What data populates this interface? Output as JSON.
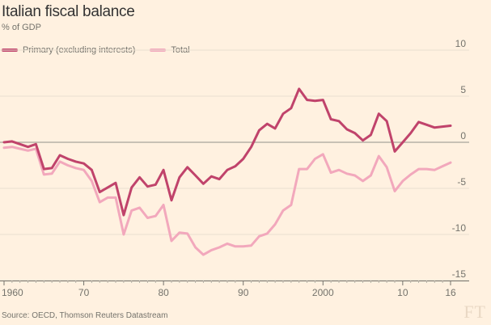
{
  "chart_data": {
    "type": "line",
    "title": "Italian fiscal balance",
    "subtitle": "% of GDP",
    "ylim": [
      -15,
      10
    ],
    "xlim": [
      1960,
      2016
    ],
    "y_ticks": [
      10,
      5,
      0,
      -5,
      -10,
      -15
    ],
    "x_ticks": [
      1960,
      1970,
      1980,
      1990,
      2000,
      2010,
      2016
    ],
    "x_tick_labels": [
      "1960",
      "70",
      "80",
      "90",
      "2000",
      "10",
      "16"
    ],
    "grid": true,
    "legend_position": "top-left",
    "series": [
      {
        "name": "Primary (excluding interests)",
        "color": "#c0436b",
        "points": [
          [
            1960,
            0.0
          ],
          [
            1961,
            0.1
          ],
          [
            1962,
            -0.2
          ],
          [
            1963,
            -0.5
          ],
          [
            1964,
            -0.2
          ],
          [
            1965,
            -2.9
          ],
          [
            1966,
            -2.8
          ],
          [
            1967,
            -1.4
          ],
          [
            1968,
            -1.8
          ],
          [
            1969,
            -2.1
          ],
          [
            1970,
            -2.3
          ],
          [
            1971,
            -3.0
          ],
          [
            1972,
            -5.4
          ],
          [
            1973,
            -4.9
          ],
          [
            1974,
            -4.4
          ],
          [
            1975,
            -7.9
          ],
          [
            1976,
            -4.9
          ],
          [
            1977,
            -3.8
          ],
          [
            1978,
            -4.8
          ],
          [
            1979,
            -4.6
          ],
          [
            1980,
            -3.0
          ],
          [
            1981,
            -6.3
          ],
          [
            1982,
            -3.8
          ],
          [
            1983,
            -2.7
          ],
          [
            1984,
            -3.6
          ],
          [
            1985,
            -4.5
          ],
          [
            1986,
            -3.7
          ],
          [
            1987,
            -4.0
          ],
          [
            1988,
            -3.0
          ],
          [
            1989,
            -2.6
          ],
          [
            1990,
            -1.8
          ],
          [
            1991,
            -0.5
          ],
          [
            1992,
            1.3
          ],
          [
            1993,
            2.0
          ],
          [
            1994,
            1.5
          ],
          [
            1995,
            3.1
          ],
          [
            1996,
            3.7
          ],
          [
            1997,
            5.8
          ],
          [
            1998,
            4.6
          ],
          [
            1999,
            4.5
          ],
          [
            2000,
            4.6
          ],
          [
            2001,
            2.5
          ],
          [
            2002,
            2.3
          ],
          [
            2003,
            1.4
          ],
          [
            2004,
            1.0
          ],
          [
            2005,
            0.2
          ],
          [
            2006,
            0.8
          ],
          [
            2007,
            3.1
          ],
          [
            2008,
            2.3
          ],
          [
            2009,
            -1.0
          ],
          [
            2010,
            0.0
          ],
          [
            2011,
            1.0
          ],
          [
            2012,
            2.2
          ],
          [
            2013,
            1.9
          ],
          [
            2014,
            1.6
          ],
          [
            2015,
            1.7
          ],
          [
            2016,
            1.8
          ]
        ]
      },
      {
        "name": "Total",
        "color": "#f2a8bc",
        "points": [
          [
            1960,
            -0.6
          ],
          [
            1961,
            -0.5
          ],
          [
            1962,
            -0.7
          ],
          [
            1963,
            -0.9
          ],
          [
            1964,
            -0.7
          ],
          [
            1965,
            -3.5
          ],
          [
            1966,
            -3.4
          ],
          [
            1967,
            -2.1
          ],
          [
            1968,
            -2.5
          ],
          [
            1969,
            -2.8
          ],
          [
            1970,
            -3.0
          ],
          [
            1971,
            -4.2
          ],
          [
            1972,
            -6.5
          ],
          [
            1973,
            -6.0
          ],
          [
            1974,
            -6.0
          ],
          [
            1975,
            -10.0
          ],
          [
            1976,
            -7.4
          ],
          [
            1977,
            -7.1
          ],
          [
            1978,
            -8.2
          ],
          [
            1979,
            -8.0
          ],
          [
            1980,
            -6.8
          ],
          [
            1981,
            -10.7
          ],
          [
            1982,
            -9.8
          ],
          [
            1983,
            -9.9
          ],
          [
            1984,
            -11.4
          ],
          [
            1985,
            -12.2
          ],
          [
            1986,
            -11.7
          ],
          [
            1987,
            -11.4
          ],
          [
            1988,
            -11.0
          ],
          [
            1989,
            -11.3
          ],
          [
            1990,
            -11.3
          ],
          [
            1991,
            -11.2
          ],
          [
            1992,
            -10.2
          ],
          [
            1993,
            -9.9
          ],
          [
            1994,
            -8.9
          ],
          [
            1995,
            -7.4
          ],
          [
            1996,
            -6.8
          ],
          [
            1997,
            -2.9
          ],
          [
            1998,
            -2.9
          ],
          [
            1999,
            -1.8
          ],
          [
            2000,
            -1.3
          ],
          [
            2001,
            -3.3
          ],
          [
            2002,
            -3.0
          ],
          [
            2003,
            -3.4
          ],
          [
            2004,
            -3.6
          ],
          [
            2005,
            -4.2
          ],
          [
            2006,
            -3.6
          ],
          [
            2007,
            -1.5
          ],
          [
            2008,
            -2.7
          ],
          [
            2009,
            -5.3
          ],
          [
            2010,
            -4.2
          ],
          [
            2011,
            -3.5
          ],
          [
            2012,
            -2.9
          ],
          [
            2013,
            -2.9
          ],
          [
            2014,
            -3.0
          ],
          [
            2015,
            -2.6
          ],
          [
            2016,
            -2.2
          ]
        ]
      }
    ],
    "source": "Source: OECD, Thomson Reuters Datastream",
    "brand": "FT"
  }
}
